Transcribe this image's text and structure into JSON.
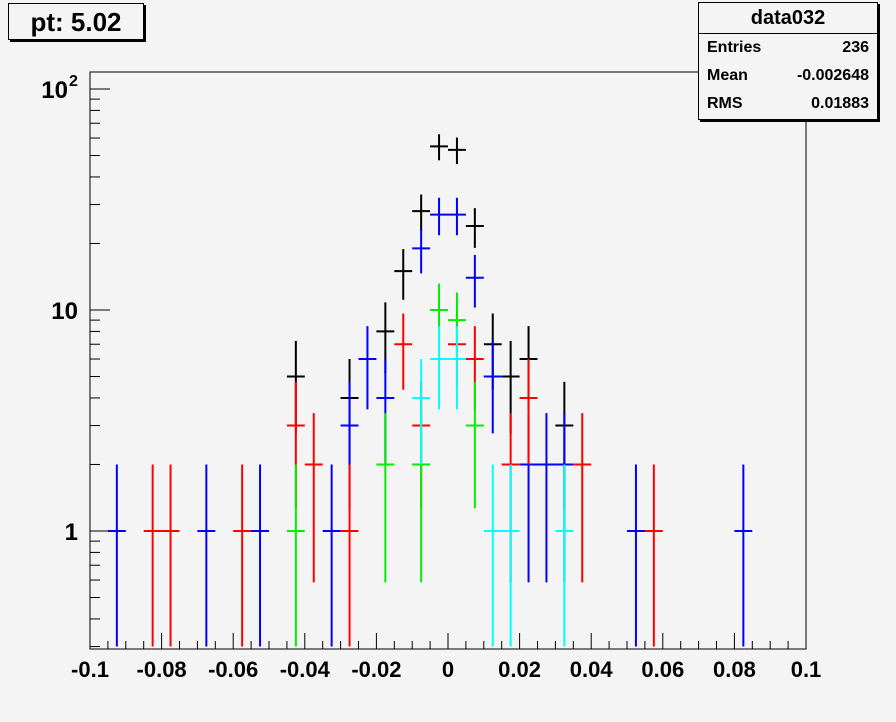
{
  "title": "pt: 5.02",
  "stats": {
    "name": "data032",
    "rows": [
      {
        "label": "Entries",
        "value": "236"
      },
      {
        "label": "Mean",
        "value": "-0.002648"
      },
      {
        "label": "RMS",
        "value": "0.01883"
      }
    ]
  },
  "chart_data": {
    "type": "scatter",
    "xlim": [
      -0.1,
      0.1
    ],
    "ylim": [
      0.3,
      130
    ],
    "log_y": true,
    "bin_width": 0.005,
    "xticks": [
      -0.1,
      -0.08,
      -0.06,
      -0.04,
      -0.02,
      0,
      0.02,
      0.04,
      0.06,
      0.08,
      0.1
    ],
    "xtick_labels": [
      "-0.1",
      "-0.08",
      "-0.06",
      "-0.04",
      "-0.02",
      "0",
      "0.02",
      "0.04",
      "0.06",
      "0.08",
      "0.1"
    ],
    "yticks": [
      1,
      10,
      100
    ],
    "ytick_labels": [
      "1",
      "10",
      "10^2"
    ],
    "grid": false,
    "series": [
      {
        "color": "#000000",
        "points": [
          {
            "x": -0.0425,
            "y": 5
          },
          {
            "x": -0.0275,
            "y": 4
          },
          {
            "x": -0.0175,
            "y": 8
          },
          {
            "x": -0.0125,
            "y": 15
          },
          {
            "x": -0.0075,
            "y": 28
          },
          {
            "x": -0.0025,
            "y": 55
          },
          {
            "x": 0.0025,
            "y": 53
          },
          {
            "x": 0.0075,
            "y": 24
          },
          {
            "x": 0.0125,
            "y": 7
          },
          {
            "x": 0.0175,
            "y": 5
          },
          {
            "x": 0.0225,
            "y": 6
          },
          {
            "x": 0.0325,
            "y": 3
          }
        ]
      },
      {
        "color": "#0000ff",
        "points": [
          {
            "x": -0.0925,
            "y": 1
          },
          {
            "x": -0.0675,
            "y": 1
          },
          {
            "x": -0.0525,
            "y": 1
          },
          {
            "x": -0.0325,
            "y": 1
          },
          {
            "x": -0.0275,
            "y": 3
          },
          {
            "x": -0.0225,
            "y": 6
          },
          {
            "x": -0.0175,
            "y": 4
          },
          {
            "x": -0.0075,
            "y": 19
          },
          {
            "x": -0.0025,
            "y": 27
          },
          {
            "x": 0.0025,
            "y": 27
          },
          {
            "x": 0.0075,
            "y": 14
          },
          {
            "x": 0.0125,
            "y": 5
          },
          {
            "x": 0.0225,
            "y": 2
          },
          {
            "x": 0.0275,
            "y": 2
          },
          {
            "x": 0.0325,
            "y": 2
          },
          {
            "x": 0.0525,
            "y": 1
          },
          {
            "x": 0.0825,
            "y": 1
          }
        ]
      },
      {
        "color": "#ff0000",
        "points": [
          {
            "x": -0.0825,
            "y": 1
          },
          {
            "x": -0.0775,
            "y": 1
          },
          {
            "x": -0.0575,
            "y": 1
          },
          {
            "x": -0.0425,
            "y": 3
          },
          {
            "x": -0.0375,
            "y": 2
          },
          {
            "x": -0.0275,
            "y": 1
          },
          {
            "x": -0.0125,
            "y": 7
          },
          {
            "x": -0.0075,
            "y": 3
          },
          {
            "x": 0.0025,
            "y": 7
          },
          {
            "x": 0.0075,
            "y": 6
          },
          {
            "x": 0.0175,
            "y": 2
          },
          {
            "x": 0.0225,
            "y": 4
          },
          {
            "x": 0.0375,
            "y": 2
          },
          {
            "x": 0.0575,
            "y": 1
          }
        ]
      },
      {
        "color": "#00ee00",
        "points": [
          {
            "x": -0.0425,
            "y": 1
          },
          {
            "x": -0.0175,
            "y": 2
          },
          {
            "x": -0.0075,
            "y": 2
          },
          {
            "x": -0.0025,
            "y": 10
          },
          {
            "x": 0.0025,
            "y": 9
          },
          {
            "x": 0.0075,
            "y": 3
          }
        ]
      },
      {
        "color": "#00ffff",
        "points": [
          {
            "x": -0.0075,
            "y": 4
          },
          {
            "x": -0.0025,
            "y": 6
          },
          {
            "x": 0.0025,
            "y": 6
          },
          {
            "x": 0.0125,
            "y": 1
          },
          {
            "x": 0.0175,
            "y": 1
          },
          {
            "x": 0.0325,
            "y": 1
          }
        ]
      }
    ]
  }
}
